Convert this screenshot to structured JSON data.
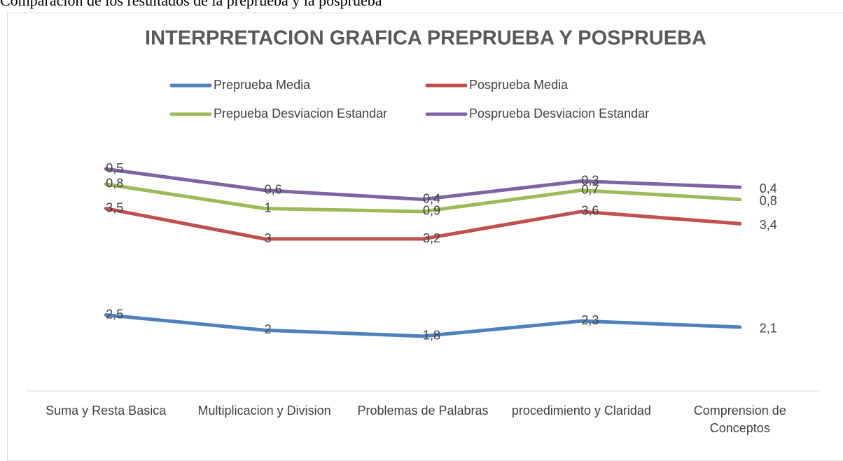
{
  "heading": "Comparación de los resultados de la preprueba y la posprueba",
  "chart_data": {
    "type": "line",
    "stacked": true,
    "title": "INTERPRETACION GRAFICA PREPRUEBA Y POSPRUEBA",
    "categories": [
      "Suma y Resta Basica",
      "Multiplicacion y Division",
      "Problemas de Palabras",
      "procedimiento y Claridad",
      "Comprension de Conceptos"
    ],
    "ylim": [
      0,
      9
    ],
    "series": [
      {
        "name": "Preprueba Media",
        "color": "#4f81bd",
        "values": [
          2.5,
          2,
          1.8,
          2.3,
          2.1
        ],
        "value_labels": [
          "2,5",
          "2",
          "1,8",
          "2,3",
          "2,1"
        ]
      },
      {
        "name": "Posprueba Media",
        "color": "#c0504d",
        "values": [
          3.5,
          3,
          3.2,
          3.6,
          3.4
        ],
        "value_labels": [
          "3,5",
          "3",
          "3,2",
          "3,6",
          "3,4"
        ]
      },
      {
        "name": "Prepueba Desviacion Estandar",
        "color": "#9bbb59",
        "values": [
          0.8,
          1,
          0.9,
          0.7,
          0.8
        ],
        "value_labels": [
          "0,8",
          "1",
          "0,9",
          "0,7",
          "0,8"
        ]
      },
      {
        "name": "Posprueba Desviacion Estandar",
        "color": "#8064a2",
        "values": [
          0.5,
          0.6,
          0.4,
          0.3,
          0.4
        ],
        "value_labels": [
          "0,5",
          "0,6",
          "0,4",
          "0,3",
          "0,4"
        ]
      }
    ]
  }
}
